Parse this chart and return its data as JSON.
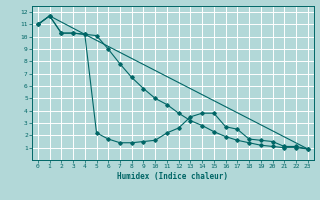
{
  "xlabel": "Humidex (Indice chaleur)",
  "ylabel": "",
  "bg_color": "#b2d8d8",
  "grid_color": "#ffffff",
  "line_color": "#006666",
  "xlim": [
    -0.5,
    23.5
  ],
  "ylim": [
    0,
    12.5
  ],
  "xticks": [
    0,
    1,
    2,
    3,
    4,
    5,
    6,
    7,
    8,
    9,
    10,
    11,
    12,
    13,
    14,
    15,
    16,
    17,
    18,
    19,
    20,
    21,
    22,
    23
  ],
  "yticks": [
    1,
    2,
    3,
    4,
    5,
    6,
    7,
    8,
    9,
    10,
    11,
    12
  ],
  "line1_x": [
    0,
    1,
    2,
    3,
    4,
    5,
    6,
    7,
    8,
    9,
    10,
    11,
    12,
    13,
    14,
    15,
    16,
    17,
    18,
    19,
    20,
    21,
    22,
    23
  ],
  "line1_y": [
    11,
    11.7,
    10.3,
    10.3,
    10.2,
    2.2,
    1.7,
    1.4,
    1.4,
    1.5,
    1.6,
    2.2,
    2.6,
    3.5,
    3.8,
    3.8,
    2.7,
    2.5,
    1.7,
    1.6,
    1.5,
    1.1,
    1.1,
    0.9
  ],
  "line2_x": [
    0,
    1,
    2,
    3,
    4,
    5,
    6,
    7,
    8,
    9,
    10,
    11,
    12,
    13,
    14,
    15,
    16,
    17,
    18,
    19,
    20,
    21,
    22,
    23
  ],
  "line2_y": [
    11,
    11.7,
    10.3,
    10.3,
    10.2,
    10.1,
    9.0,
    7.8,
    6.7,
    5.8,
    5.0,
    4.5,
    3.8,
    3.2,
    2.8,
    2.3,
    1.9,
    1.6,
    1.4,
    1.2,
    1.1,
    1.0,
    1.0,
    0.9
  ],
  "line3_x": [
    0,
    1,
    4,
    23
  ],
  "line3_y": [
    11,
    11.7,
    10.2,
    0.9
  ]
}
